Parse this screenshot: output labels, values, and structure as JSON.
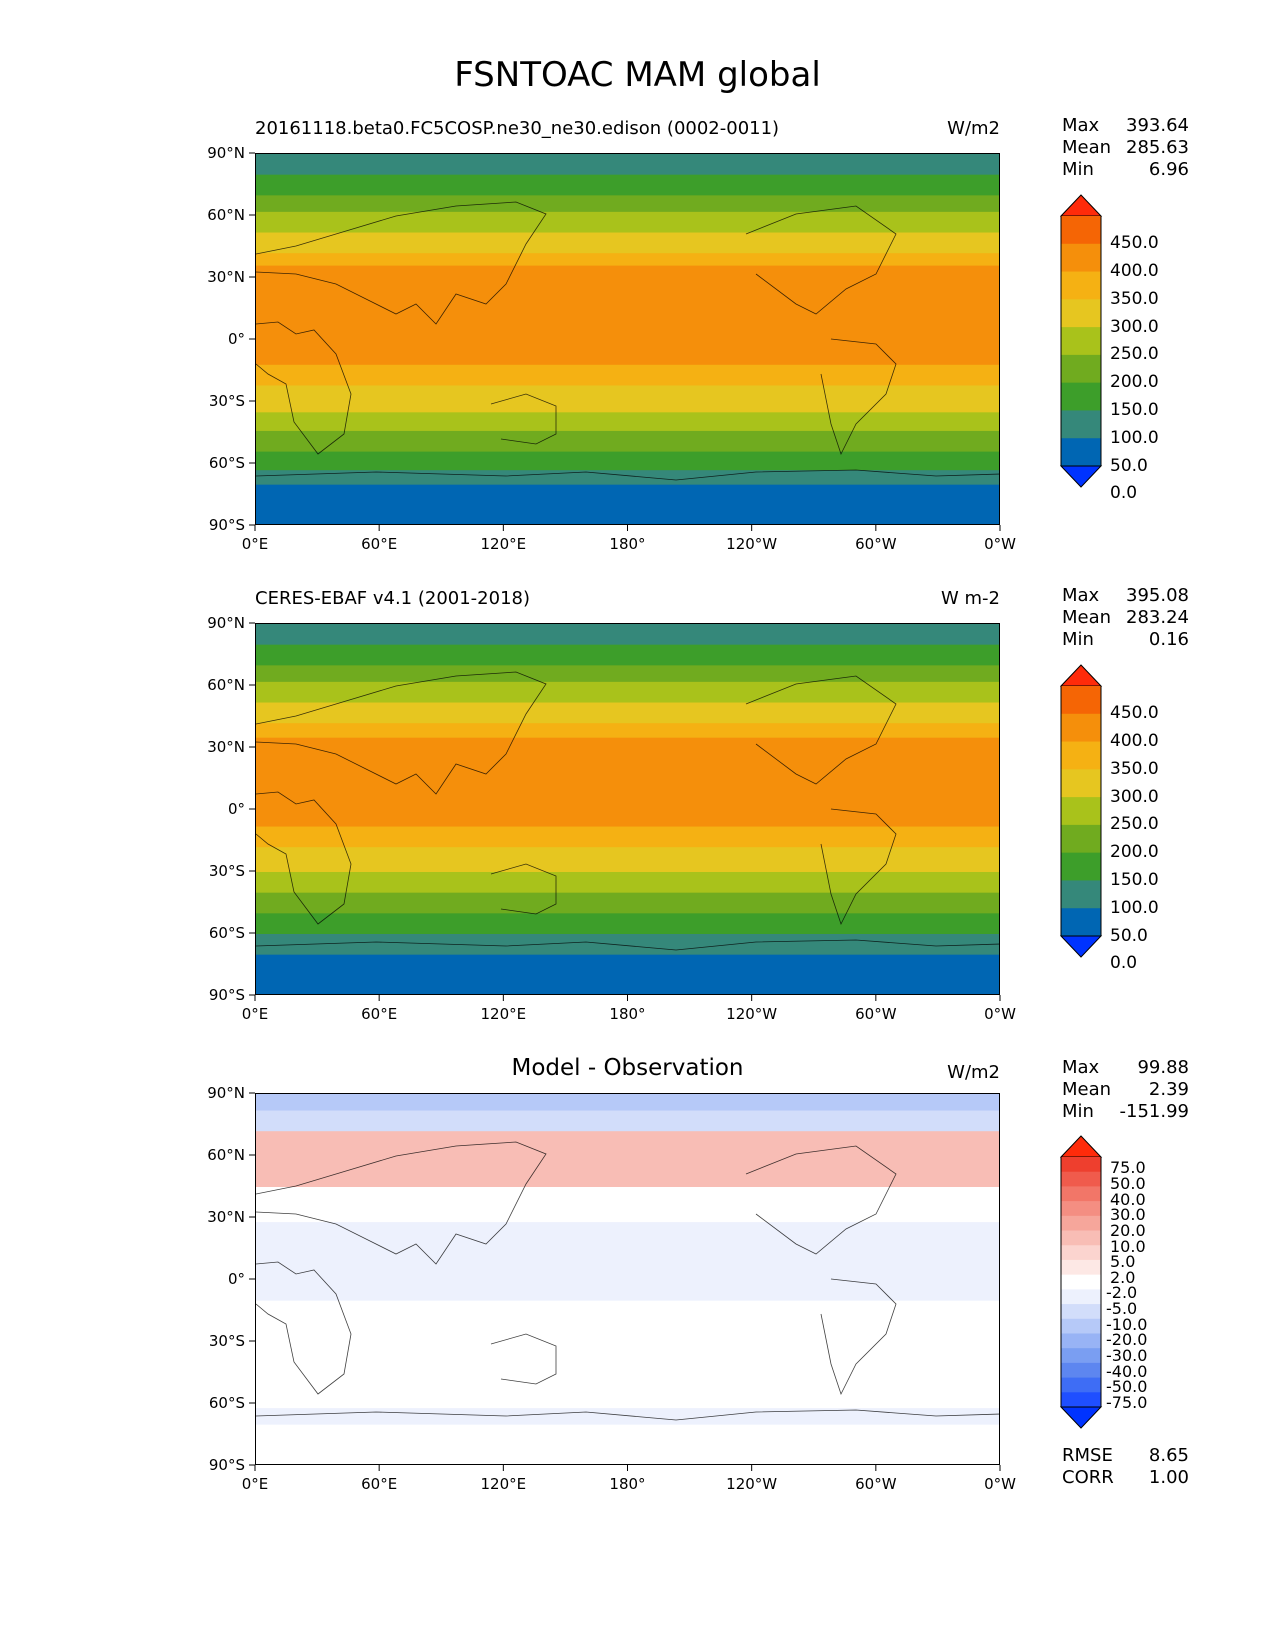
{
  "title": "FSNTOAC MAM global",
  "x_ticks": [
    "0°E",
    "60°E",
    "120°E",
    "180°",
    "120°W",
    "60°W",
    "0°W"
  ],
  "y_ticks": [
    "90°N",
    "60°N",
    "30°N",
    "0°",
    "30°S",
    "60°S",
    "90°S"
  ],
  "colors": {
    "abs_levels": [
      "#0033ff",
      "#0066b3",
      "#35887a",
      "#3d9e2a",
      "#70ab1f",
      "#a9c21b",
      "#e6c620",
      "#f5b113",
      "#f58f0b",
      "#f56505",
      "#ff2b0a"
    ],
    "diff_levels": [
      "#0033ff",
      "#1f4fff",
      "#3e6df5",
      "#5d86f0",
      "#7a9ef2",
      "#98b3f5",
      "#b6c9f8",
      "#d2ddfa",
      "#edf1fd",
      "#ffffff",
      "#fde8e5",
      "#fbd4cf",
      "#f8bdb5",
      "#f6a69b",
      "#f48e82",
      "#f27668",
      "#f05b4c",
      "#ee3f2e",
      "#ff2b0a"
    ]
  },
  "chart_data": [
    {
      "type": "heatmap",
      "title": "20161118.beta0.FC5COSP.ne30_ne30.edison (0002-0011)",
      "units": "W/m2",
      "xlim": [
        0,
        360
      ],
      "ylim": [
        -90,
        90
      ],
      "stats": {
        "max_label": "Max",
        "max": "393.64",
        "mean_label": "Mean",
        "mean": "285.63",
        "min_label": "Min",
        "min": "6.96"
      },
      "colorbar_ticks": [
        "450.0",
        "400.0",
        "350.0",
        "300.0",
        "250.0",
        "200.0",
        "150.0",
        "100.0",
        "50.0",
        "0.0"
      ],
      "zonal_band_values": [
        {
          "lat": [
            90,
            80
          ],
          "value": 75
        },
        {
          "lat": [
            80,
            70
          ],
          "value": 125
        },
        {
          "lat": [
            70,
            62
          ],
          "value": 175
        },
        {
          "lat": [
            62,
            52
          ],
          "value": 225
        },
        {
          "lat": [
            52,
            42
          ],
          "value": 275
        },
        {
          "lat": [
            42,
            36
          ],
          "value": 325
        },
        {
          "lat": [
            36,
            -12
          ],
          "value": 375
        },
        {
          "lat": [
            -12,
            -22
          ],
          "value": 325
        },
        {
          "lat": [
            -22,
            -35
          ],
          "value": 275
        },
        {
          "lat": [
            -35,
            -44
          ],
          "value": 225
        },
        {
          "lat": [
            -44,
            -54
          ],
          "value": 175
        },
        {
          "lat": [
            -54,
            -63
          ],
          "value": 125
        },
        {
          "lat": [
            -63,
            -70
          ],
          "value": 75
        },
        {
          "lat": [
            -70,
            -90
          ],
          "value": 25
        }
      ]
    },
    {
      "type": "heatmap",
      "title": "CERES-EBAF v4.1 (2001-2018)",
      "units": "W m-2",
      "xlim": [
        0,
        360
      ],
      "ylim": [
        -90,
        90
      ],
      "stats": {
        "max_label": "Max",
        "max": "395.08",
        "mean_label": "Mean",
        "mean": "283.24",
        "min_label": "Min",
        "min": "0.16"
      },
      "colorbar_ticks": [
        "450.0",
        "400.0",
        "350.0",
        "300.0",
        "250.0",
        "200.0",
        "150.0",
        "100.0",
        "50.0",
        "0.0"
      ],
      "zonal_band_values": [
        {
          "lat": [
            90,
            80
          ],
          "value": 75
        },
        {
          "lat": [
            80,
            70
          ],
          "value": 125
        },
        {
          "lat": [
            70,
            62
          ],
          "value": 175
        },
        {
          "lat": [
            62,
            52
          ],
          "value": 225
        },
        {
          "lat": [
            52,
            42
          ],
          "value": 275
        },
        {
          "lat": [
            42,
            35
          ],
          "value": 325
        },
        {
          "lat": [
            35,
            -8
          ],
          "value": 375
        },
        {
          "lat": [
            -8,
            -18
          ],
          "value": 325
        },
        {
          "lat": [
            -18,
            -30
          ],
          "value": 275
        },
        {
          "lat": [
            -30,
            -40
          ],
          "value": 225
        },
        {
          "lat": [
            -40,
            -50
          ],
          "value": 175
        },
        {
          "lat": [
            -50,
            -60
          ],
          "value": 125
        },
        {
          "lat": [
            -60,
            -70
          ],
          "value": 75
        },
        {
          "lat": [
            -70,
            -90
          ],
          "value": 25
        }
      ]
    },
    {
      "type": "heatmap",
      "title": "Model - Observation",
      "units": "W/m2",
      "xlim": [
        0,
        360
      ],
      "ylim": [
        -90,
        90
      ],
      "stats": {
        "max_label": "Max",
        "max": "99.88",
        "mean_label": "Mean",
        "mean": "2.39",
        "min_label": "Min",
        "min": "-151.99"
      },
      "colorbar_ticks": [
        "75.0",
        "50.0",
        "40.0",
        "30.0",
        "20.0",
        "10.0",
        "5.0",
        "2.0",
        "-2.0",
        "-5.0",
        "-10.0",
        "-20.0",
        "-30.0",
        "-40.0",
        "-50.0",
        "-75.0"
      ],
      "rmse_label": "RMSE",
      "rmse": "8.65",
      "corr_label": "CORR",
      "corr": "1.00",
      "zonal_band_values": [
        {
          "lat": [
            90,
            82
          ],
          "value": -7
        },
        {
          "lat": [
            82,
            72
          ],
          "value": -3
        },
        {
          "lat": [
            72,
            45
          ],
          "value": 12
        },
        {
          "lat": [
            45,
            28
          ],
          "value": 4
        },
        {
          "lat": [
            28,
            -10
          ],
          "value": 1
        },
        {
          "lat": [
            -10,
            -62
          ],
          "value": 4
        },
        {
          "lat": [
            -62,
            -70
          ],
          "value": 1
        },
        {
          "lat": [
            -70,
            -90
          ],
          "value": 3
        }
      ]
    }
  ]
}
